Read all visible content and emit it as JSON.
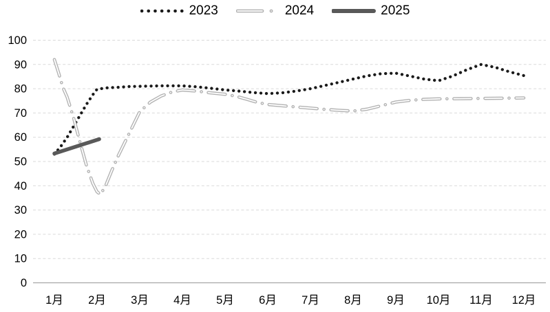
{
  "page": {
    "background": "#ffffff"
  },
  "legend": {
    "position": "top-center",
    "items": [
      {
        "label": "2023",
        "style": "dotted",
        "color": "#1a1a1a"
      },
      {
        "label": "2024",
        "style": "long-dash-dot",
        "color": "#b3b3b3"
      },
      {
        "label": "2025",
        "style": "solid-thick",
        "color": "#595959"
      }
    ]
  },
  "axes": {
    "gridline_color": "#d9d9d9",
    "axis_line_color": "#a6a6a6",
    "label_color": "#000000"
  },
  "chart_data": {
    "type": "line",
    "title": "",
    "xlabel": "",
    "ylabel": "",
    "x_categories": [
      "1月",
      "2月",
      "3月",
      "4月",
      "5月",
      "6月",
      "7月",
      "8月",
      "9月",
      "10月",
      "11月",
      "12月"
    ],
    "y_tick_labels": [
      "0",
      "10",
      "20",
      "30",
      "40",
      "50",
      "60",
      "70",
      "80",
      "90",
      "100"
    ],
    "ylim": [
      0,
      100
    ],
    "y_tick_step": 10,
    "grid": "horizontal-dashed",
    "legend_position": "top-center",
    "series": [
      {
        "name": "2023",
        "line_style": "dotted",
        "color": "#1a1a1a",
        "monthly_values": [
          53,
          80,
          81,
          81,
          79.5,
          78,
          80,
          84,
          86.5,
          83.5,
          90,
          85.5
        ],
        "points": [
          [
            1,
            53
          ],
          [
            1.15,
            56.2
          ],
          [
            1.3,
            60
          ],
          [
            1.45,
            64.5
          ],
          [
            1.6,
            69
          ],
          [
            1.75,
            73.5
          ],
          [
            1.9,
            77.5
          ],
          [
            2,
            79.8
          ],
          [
            2.25,
            80.4
          ],
          [
            2.5,
            80.6
          ],
          [
            2.75,
            80.9
          ],
          [
            3,
            81
          ],
          [
            3.5,
            81.2
          ],
          [
            4,
            81.2
          ],
          [
            4.33,
            80.8
          ],
          [
            4.66,
            80.2
          ],
          [
            5,
            79.5
          ],
          [
            5.33,
            79
          ],
          [
            5.66,
            78.4
          ],
          [
            6,
            78
          ],
          [
            6.33,
            78.3
          ],
          [
            6.66,
            79
          ],
          [
            7,
            80
          ],
          [
            7.33,
            81.3
          ],
          [
            7.66,
            82.6
          ],
          [
            8,
            84
          ],
          [
            8.33,
            85.3
          ],
          [
            8.66,
            86.2
          ],
          [
            9,
            86.4
          ],
          [
            9.33,
            85.2
          ],
          [
            9.66,
            84
          ],
          [
            10,
            83.3
          ],
          [
            10.33,
            85.2
          ],
          [
            10.66,
            87.8
          ],
          [
            11,
            90
          ],
          [
            11.33,
            88.8
          ],
          [
            11.66,
            87
          ],
          [
            12,
            85.4
          ]
        ]
      },
      {
        "name": "2024",
        "line_style": "long-dash-dot",
        "color": "#b3b3b3",
        "monthly_values": [
          92,
          37.5,
          70.5,
          79.5,
          77.5,
          73.5,
          72,
          71,
          74.5,
          76,
          76,
          76.2
        ],
        "points": [
          [
            1,
            92
          ],
          [
            1.1,
            86.5
          ],
          [
            1.2,
            80.5
          ],
          [
            1.3,
            76.5
          ],
          [
            1.45,
            68
          ],
          [
            1.6,
            58
          ],
          [
            1.75,
            48.5
          ],
          [
            1.9,
            41
          ],
          [
            2,
            37.5
          ],
          [
            2.08,
            36.4
          ],
          [
            2.2,
            40
          ],
          [
            2.35,
            46.5
          ],
          [
            2.5,
            52.5
          ],
          [
            2.75,
            61.5
          ],
          [
            3,
            70.5
          ],
          [
            3.25,
            74.5
          ],
          [
            3.5,
            77
          ],
          [
            3.75,
            78.6
          ],
          [
            4,
            79.5
          ],
          [
            4.33,
            79
          ],
          [
            4.66,
            78.3
          ],
          [
            5,
            77.7
          ],
          [
            5.25,
            76.9
          ],
          [
            5.5,
            75.7
          ],
          [
            5.75,
            74.4
          ],
          [
            6,
            73.5
          ],
          [
            6.33,
            73
          ],
          [
            6.66,
            72.5
          ],
          [
            7,
            72
          ],
          [
            7.33,
            71.5
          ],
          [
            7.66,
            71.1
          ],
          [
            8,
            70.8
          ],
          [
            8.33,
            71.6
          ],
          [
            8.66,
            73
          ],
          [
            9,
            74.5
          ],
          [
            9.33,
            75.2
          ],
          [
            9.66,
            75.6
          ],
          [
            10,
            75.8
          ],
          [
            10.5,
            75.9
          ],
          [
            11,
            76
          ],
          [
            11.5,
            76.1
          ],
          [
            12,
            76.2
          ]
        ]
      },
      {
        "name": "2025",
        "line_style": "solid-thick",
        "color": "#595959",
        "monthly_values": [
          53.3,
          59,
          null,
          null,
          null,
          null,
          null,
          null,
          null,
          null,
          null,
          null
        ],
        "points": [
          [
            1,
            53.3
          ],
          [
            2.05,
            59.2
          ]
        ]
      }
    ]
  }
}
